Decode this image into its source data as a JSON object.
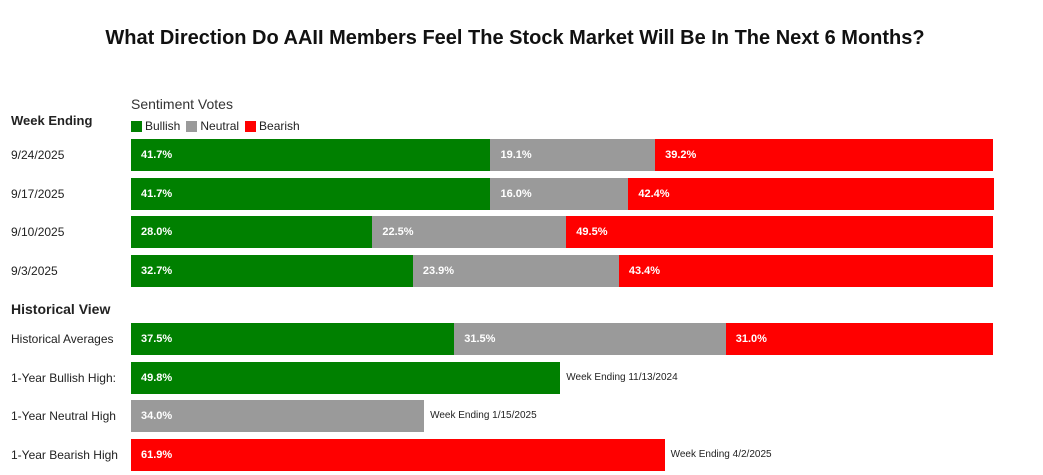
{
  "title": "What Direction Do AAII Members Feel The Stock Market Will Be In The Next 6 Months?",
  "week_ending_label": "Week Ending",
  "historical_label": "Historical View",
  "chart_data": {
    "type": "bar",
    "orientation": "horizontal",
    "stacked": true,
    "subtitle": "Sentiment Votes",
    "legend": [
      {
        "name": "Bullish",
        "color": "#008000"
      },
      {
        "name": "Neutral",
        "color": "#9a9a9a"
      },
      {
        "name": "Bearish",
        "color": "#ff0000"
      }
    ],
    "categories": [
      "9/24/2025",
      "9/17/2025",
      "9/10/2025",
      "9/3/2025",
      "Historical Averages",
      "1-Year Bullish High:",
      "1-Year Neutral High",
      "1-Year Bearish High"
    ],
    "series": [
      {
        "name": "Bullish",
        "values": [
          41.7,
          41.7,
          28.0,
          32.7,
          37.5,
          49.8,
          null,
          null
        ]
      },
      {
        "name": "Neutral",
        "values": [
          19.1,
          16.0,
          22.5,
          23.9,
          31.5,
          null,
          34.0,
          null
        ]
      },
      {
        "name": "Bearish",
        "values": [
          39.2,
          42.4,
          49.5,
          43.4,
          31.0,
          null,
          null,
          61.9
        ]
      }
    ],
    "data_labels": [
      [
        "41.7%",
        "19.1%",
        "39.2%"
      ],
      [
        "41.7%",
        "16.0%",
        "42.4%"
      ],
      [
        "28.0%",
        "22.5%",
        "49.5%"
      ],
      [
        "32.7%",
        "23.9%",
        "43.4%"
      ],
      [
        "37.5%",
        "31.5%",
        "31.0%"
      ],
      [
        "49.8%",
        null,
        null
      ],
      [
        null,
        "34.0%",
        null
      ],
      [
        null,
        null,
        "61.9%"
      ]
    ],
    "annotations": [
      null,
      null,
      null,
      null,
      null,
      "Week Ending 11/13/2024",
      "Week Ending 1/15/2025",
      "Week Ending 4/2/2025"
    ],
    "xlim": [
      0,
      100
    ]
  }
}
